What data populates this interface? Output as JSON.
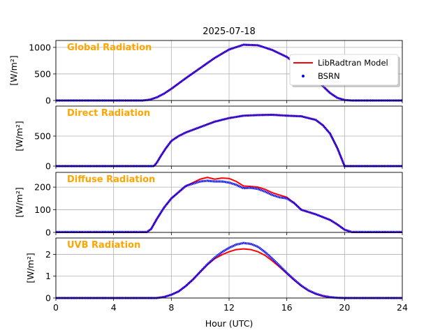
{
  "chart_data": {
    "type": "line",
    "title": "2025-07-18",
    "xlabel": "Hour (UTC)",
    "x_ticks": [
      0,
      4,
      8,
      12,
      16,
      20,
      24
    ],
    "xlim": [
      0,
      24
    ],
    "grid": true,
    "legend": {
      "location": "top-right",
      "entries": [
        {
          "name": "LibRadtran Model",
          "style": "line",
          "color": "#ff0000"
        },
        {
          "name": "BSRN",
          "style": "dots",
          "color": "#0000ff"
        }
      ]
    },
    "colors": {
      "model": "#ff0000",
      "bsrn": "#0000ff",
      "panel_title": "#ffa500",
      "grid": "#b0b0b0"
    },
    "panels": [
      {
        "title": "Global Radiation",
        "ylabel": "[W/m²]",
        "ylim": [
          0,
          1130
        ],
        "y_ticks": [
          0,
          500,
          1000
        ],
        "series": [
          {
            "name": "LibRadtran Model",
            "x": [
              0,
              6.0,
              6.5,
              7.0,
              7.5,
              8.0,
              9.0,
              10.0,
              11.0,
              12.0,
              13.0,
              14.0,
              15.0,
              16.0,
              17.0,
              18.0,
              19.0,
              19.5,
              20.0,
              20.5,
              24
            ],
            "y": [
              0,
              0,
              15,
              60,
              130,
              220,
              420,
              610,
              800,
              960,
              1050,
              1040,
              950,
              820,
              620,
              400,
              140,
              50,
              10,
              0,
              0
            ]
          },
          {
            "name": "BSRN",
            "x": [
              0,
              6.0,
              6.5,
              7.0,
              7.5,
              8.0,
              9.0,
              10.0,
              11.0,
              12.0,
              13.0,
              14.0,
              15.0,
              16.0,
              17.0,
              18.0,
              19.0,
              19.5,
              20.0,
              20.5,
              24
            ],
            "y": [
              0,
              0,
              15,
              60,
              130,
              220,
              420,
              610,
              800,
              960,
              1050,
              1040,
              950,
              820,
              620,
              400,
              140,
              50,
              10,
              0,
              0
            ]
          }
        ]
      },
      {
        "title": "Direct Radiation",
        "ylabel": "[W/m²]",
        "ylim": [
          0,
          1000
        ],
        "y_ticks": [
          0,
          500
        ],
        "series": [
          {
            "name": "LibRadtran Model",
            "x": [
              0,
              6.8,
              7.0,
              7.3,
              7.6,
              8.0,
              8.5,
              9.0,
              10.0,
              11.0,
              12.0,
              13.0,
              14.0,
              15.0,
              16.0,
              17.0,
              18.0,
              18.5,
              19.0,
              19.5,
              19.8,
              20.0,
              24
            ],
            "y": [
              0,
              0,
              60,
              180,
              290,
              420,
              500,
              560,
              650,
              740,
              800,
              840,
              850,
              855,
              840,
              830,
              770,
              680,
              540,
              300,
              120,
              0,
              0
            ]
          },
          {
            "name": "BSRN",
            "x": [
              0,
              6.8,
              7.0,
              7.3,
              7.6,
              8.0,
              8.5,
              9.0,
              10.0,
              11.0,
              12.0,
              13.0,
              14.0,
              15.0,
              16.0,
              17.0,
              18.0,
              18.5,
              19.0,
              19.5,
              19.8,
              20.0,
              24
            ],
            "y": [
              0,
              0,
              60,
              180,
              290,
              420,
              500,
              560,
              650,
              740,
              800,
              840,
              850,
              855,
              840,
              830,
              770,
              680,
              540,
              300,
              120,
              0,
              0
            ]
          }
        ]
      },
      {
        "title": "Diffuse Radiation",
        "ylabel": "[W/m²]",
        "ylim": [
          0,
          265
        ],
        "y_ticks": [
          0,
          100,
          200
        ],
        "series": [
          {
            "name": "LibRadtran Model",
            "x": [
              0,
              6.3,
              6.6,
              7.0,
              7.5,
              8.0,
              9.0,
              10.0,
              10.5,
              11.0,
              11.5,
              12.0,
              12.5,
              13.0,
              13.5,
              14.0,
              14.5,
              15.0,
              15.5,
              16.0,
              16.5,
              17.0,
              18.0,
              19.0,
              19.5,
              20.0,
              20.5,
              24
            ],
            "y": [
              0,
              0,
              15,
              60,
              110,
              150,
              205,
              235,
              243,
              235,
              240,
              238,
              225,
              205,
              203,
              200,
              190,
              175,
              165,
              155,
              130,
              100,
              80,
              55,
              35,
              12,
              0,
              0
            ]
          },
          {
            "name": "BSRN",
            "x": [
              0,
              6.3,
              6.6,
              7.0,
              7.5,
              8.0,
              9.0,
              10.0,
              10.5,
              11.0,
              11.5,
              12.0,
              12.5,
              13.0,
              13.5,
              14.0,
              14.5,
              15.0,
              15.5,
              16.0,
              16.5,
              17.0,
              18.0,
              19.0,
              19.5,
              20.0,
              20.5,
              24
            ],
            "y": [
              2,
              2,
              15,
              60,
              110,
              150,
              205,
              225,
              228,
              225,
              225,
              220,
              210,
              195,
              197,
              192,
              180,
              165,
              155,
              150,
              130,
              100,
              80,
              55,
              35,
              12,
              2,
              2
            ]
          }
        ]
      },
      {
        "title": "UVB Radiation",
        "ylabel": "[W/m²]",
        "ylim": [
          0,
          2.75
        ],
        "y_ticks": [
          0,
          1,
          2
        ],
        "series": [
          {
            "name": "LibRadtran Model",
            "x": [
              0,
              7.0,
              7.5,
              8.0,
              8.5,
              9.0,
              9.5,
              10.0,
              10.5,
              11.0,
              11.5,
              12.0,
              12.5,
              13.0,
              13.5,
              14.0,
              14.5,
              15.0,
              15.5,
              16.0,
              16.5,
              17.0,
              17.5,
              18.0,
              18.5,
              19.0,
              19.5,
              20.0,
              20.5,
              24
            ],
            "y": [
              0,
              0,
              0.05,
              0.15,
              0.3,
              0.55,
              0.85,
              1.2,
              1.52,
              1.8,
              1.98,
              2.12,
              2.22,
              2.25,
              2.22,
              2.12,
              1.95,
              1.7,
              1.42,
              1.12,
              0.82,
              0.55,
              0.33,
              0.18,
              0.08,
              0.03,
              0.01,
              0,
              0,
              0
            ]
          },
          {
            "name": "BSRN",
            "x": [
              0,
              7.0,
              7.5,
              8.0,
              8.5,
              9.0,
              9.5,
              10.0,
              10.5,
              11.0,
              11.5,
              12.0,
              12.5,
              13.0,
              13.5,
              14.0,
              14.5,
              15.0,
              15.5,
              16.0,
              16.5,
              17.0,
              17.5,
              18.0,
              18.5,
              19.0,
              19.5,
              20.0,
              20.5,
              24
            ],
            "y": [
              0,
              0,
              0.05,
              0.15,
              0.3,
              0.55,
              0.85,
              1.2,
              1.55,
              1.85,
              2.1,
              2.3,
              2.45,
              2.52,
              2.48,
              2.35,
              2.1,
              1.8,
              1.48,
              1.15,
              0.85,
              0.57,
              0.35,
              0.2,
              0.1,
              0.04,
              0.01,
              0,
              0,
              0
            ]
          }
        ]
      }
    ]
  }
}
